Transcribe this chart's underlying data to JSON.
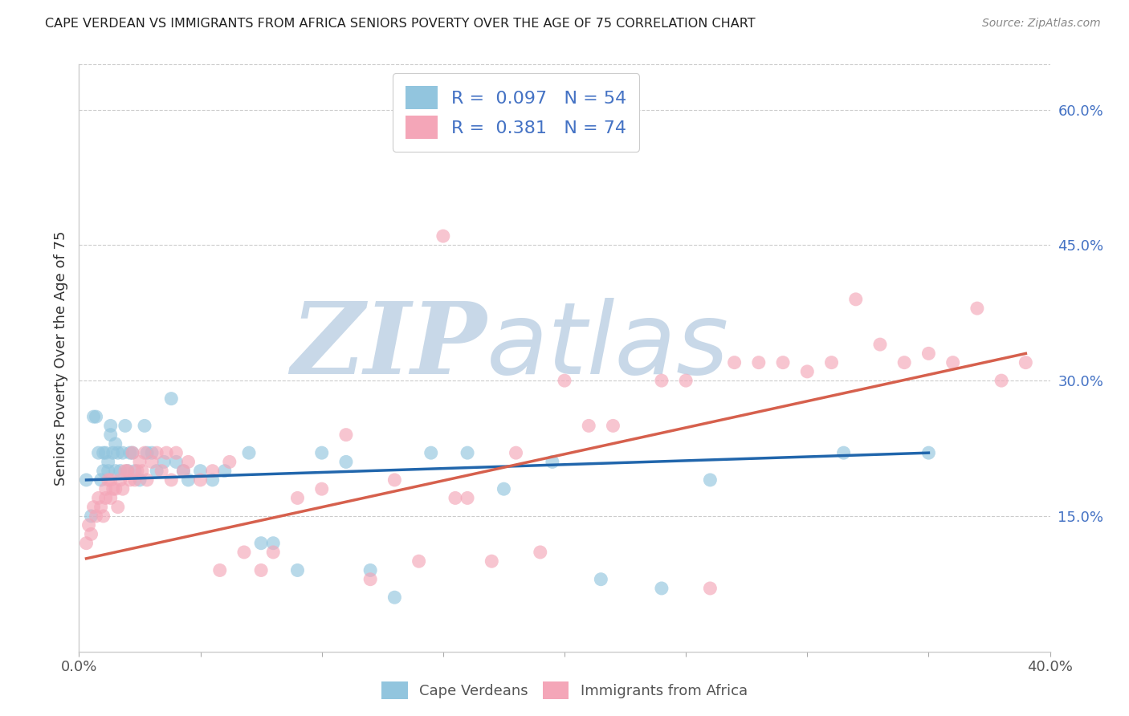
{
  "title": "CAPE VERDEAN VS IMMIGRANTS FROM AFRICA SENIORS POVERTY OVER THE AGE OF 75 CORRELATION CHART",
  "source": "Source: ZipAtlas.com",
  "ylabel": "Seniors Poverty Over the Age of 75",
  "xlim": [
    0.0,
    0.4
  ],
  "ylim": [
    0.0,
    0.65
  ],
  "ytick_vals": [
    0.15,
    0.3,
    0.45,
    0.6
  ],
  "ytick_labels": [
    "15.0%",
    "30.0%",
    "45.0%",
    "60.0%"
  ],
  "xtick_vals": [
    0.0,
    0.05,
    0.1,
    0.15,
    0.2,
    0.25,
    0.3,
    0.35,
    0.4
  ],
  "legend_r1": "0.097",
  "legend_n1": "54",
  "legend_r2": "0.381",
  "legend_n2": "74",
  "color_blue": "#92c5de",
  "color_pink": "#f4a6b8",
  "line_color_blue": "#2166ac",
  "line_color_pink": "#d6604d",
  "watermark_zip": "ZIP",
  "watermark_atlas": "atlas",
  "watermark_color": "#c8d8e8",
  "background_color": "#ffffff",
  "blue_x": [
    0.003,
    0.005,
    0.006,
    0.007,
    0.008,
    0.009,
    0.01,
    0.01,
    0.011,
    0.012,
    0.012,
    0.013,
    0.013,
    0.014,
    0.015,
    0.015,
    0.016,
    0.017,
    0.018,
    0.019,
    0.02,
    0.021,
    0.022,
    0.023,
    0.025,
    0.027,
    0.028,
    0.03,
    0.032,
    0.035,
    0.038,
    0.04,
    0.043,
    0.045,
    0.05,
    0.055,
    0.06,
    0.07,
    0.075,
    0.08,
    0.09,
    0.1,
    0.11,
    0.12,
    0.13,
    0.145,
    0.16,
    0.175,
    0.195,
    0.215,
    0.24,
    0.26,
    0.315,
    0.35
  ],
  "blue_y": [
    0.19,
    0.15,
    0.26,
    0.26,
    0.22,
    0.19,
    0.2,
    0.22,
    0.22,
    0.2,
    0.21,
    0.24,
    0.25,
    0.22,
    0.2,
    0.23,
    0.22,
    0.2,
    0.22,
    0.25,
    0.2,
    0.22,
    0.22,
    0.2,
    0.19,
    0.25,
    0.22,
    0.22,
    0.2,
    0.21,
    0.28,
    0.21,
    0.2,
    0.19,
    0.2,
    0.19,
    0.2,
    0.22,
    0.12,
    0.12,
    0.09,
    0.22,
    0.21,
    0.09,
    0.06,
    0.22,
    0.22,
    0.18,
    0.21,
    0.08,
    0.07,
    0.19,
    0.22,
    0.22
  ],
  "pink_x": [
    0.003,
    0.004,
    0.005,
    0.006,
    0.007,
    0.008,
    0.009,
    0.01,
    0.011,
    0.011,
    0.012,
    0.013,
    0.013,
    0.014,
    0.015,
    0.016,
    0.017,
    0.018,
    0.019,
    0.02,
    0.021,
    0.022,
    0.023,
    0.024,
    0.025,
    0.026,
    0.027,
    0.028,
    0.03,
    0.032,
    0.034,
    0.036,
    0.038,
    0.04,
    0.043,
    0.045,
    0.05,
    0.055,
    0.058,
    0.062,
    0.068,
    0.075,
    0.08,
    0.09,
    0.1,
    0.11,
    0.12,
    0.13,
    0.14,
    0.15,
    0.155,
    0.16,
    0.17,
    0.18,
    0.19,
    0.2,
    0.21,
    0.22,
    0.25,
    0.27,
    0.29,
    0.31,
    0.33,
    0.35,
    0.36,
    0.37,
    0.38,
    0.39,
    0.28,
    0.24,
    0.26,
    0.3,
    0.32,
    0.34
  ],
  "pink_y": [
    0.12,
    0.14,
    0.13,
    0.16,
    0.15,
    0.17,
    0.16,
    0.15,
    0.17,
    0.18,
    0.19,
    0.17,
    0.19,
    0.18,
    0.18,
    0.16,
    0.19,
    0.18,
    0.2,
    0.2,
    0.19,
    0.22,
    0.19,
    0.2,
    0.21,
    0.2,
    0.22,
    0.19,
    0.21,
    0.22,
    0.2,
    0.22,
    0.19,
    0.22,
    0.2,
    0.21,
    0.19,
    0.2,
    0.09,
    0.21,
    0.11,
    0.09,
    0.11,
    0.17,
    0.18,
    0.24,
    0.08,
    0.19,
    0.1,
    0.46,
    0.17,
    0.17,
    0.1,
    0.22,
    0.11,
    0.3,
    0.25,
    0.25,
    0.3,
    0.32,
    0.32,
    0.32,
    0.34,
    0.33,
    0.32,
    0.38,
    0.3,
    0.32,
    0.32,
    0.3,
    0.07,
    0.31,
    0.39,
    0.32
  ],
  "blue_trend_x": [
    0.003,
    0.35
  ],
  "blue_trend_y": [
    0.19,
    0.22
  ],
  "pink_trend_x": [
    0.003,
    0.39
  ],
  "pink_trend_y": [
    0.103,
    0.33
  ]
}
